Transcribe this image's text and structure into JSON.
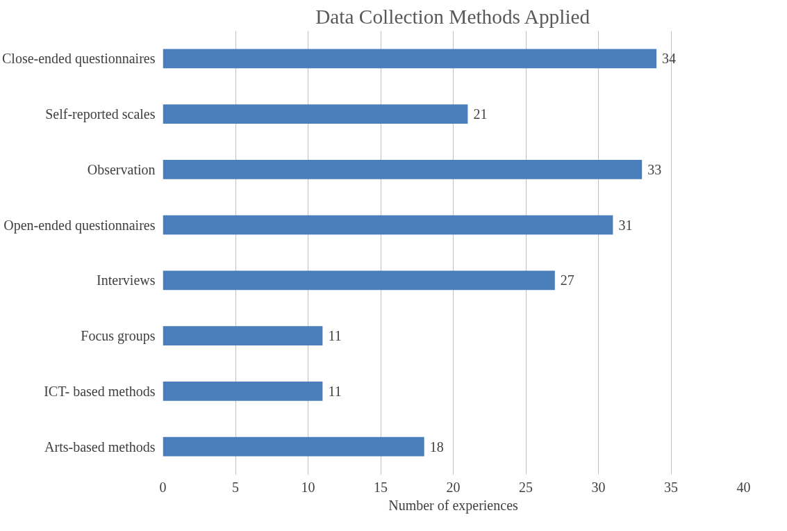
{
  "chart_data": {
    "type": "bar",
    "orientation": "horizontal",
    "title": "Data Collection Methods Applied",
    "xlabel": "Number of experiences",
    "categories": [
      "Close-ended questionnaires",
      "Self-reported scales",
      "Observation",
      "Open-ended questionnaires",
      "Interviews",
      "Focus groups",
      "ICT- based methods",
      "Arts-based methods"
    ],
    "values": [
      34,
      21,
      33,
      31,
      27,
      11,
      11,
      18
    ],
    "color": "#4a7ebb",
    "xlim": [
      0,
      40
    ],
    "xticks": [
      0,
      5,
      10,
      15,
      20,
      25,
      30,
      35,
      40
    ],
    "grid": "x",
    "data_labels": true
  }
}
